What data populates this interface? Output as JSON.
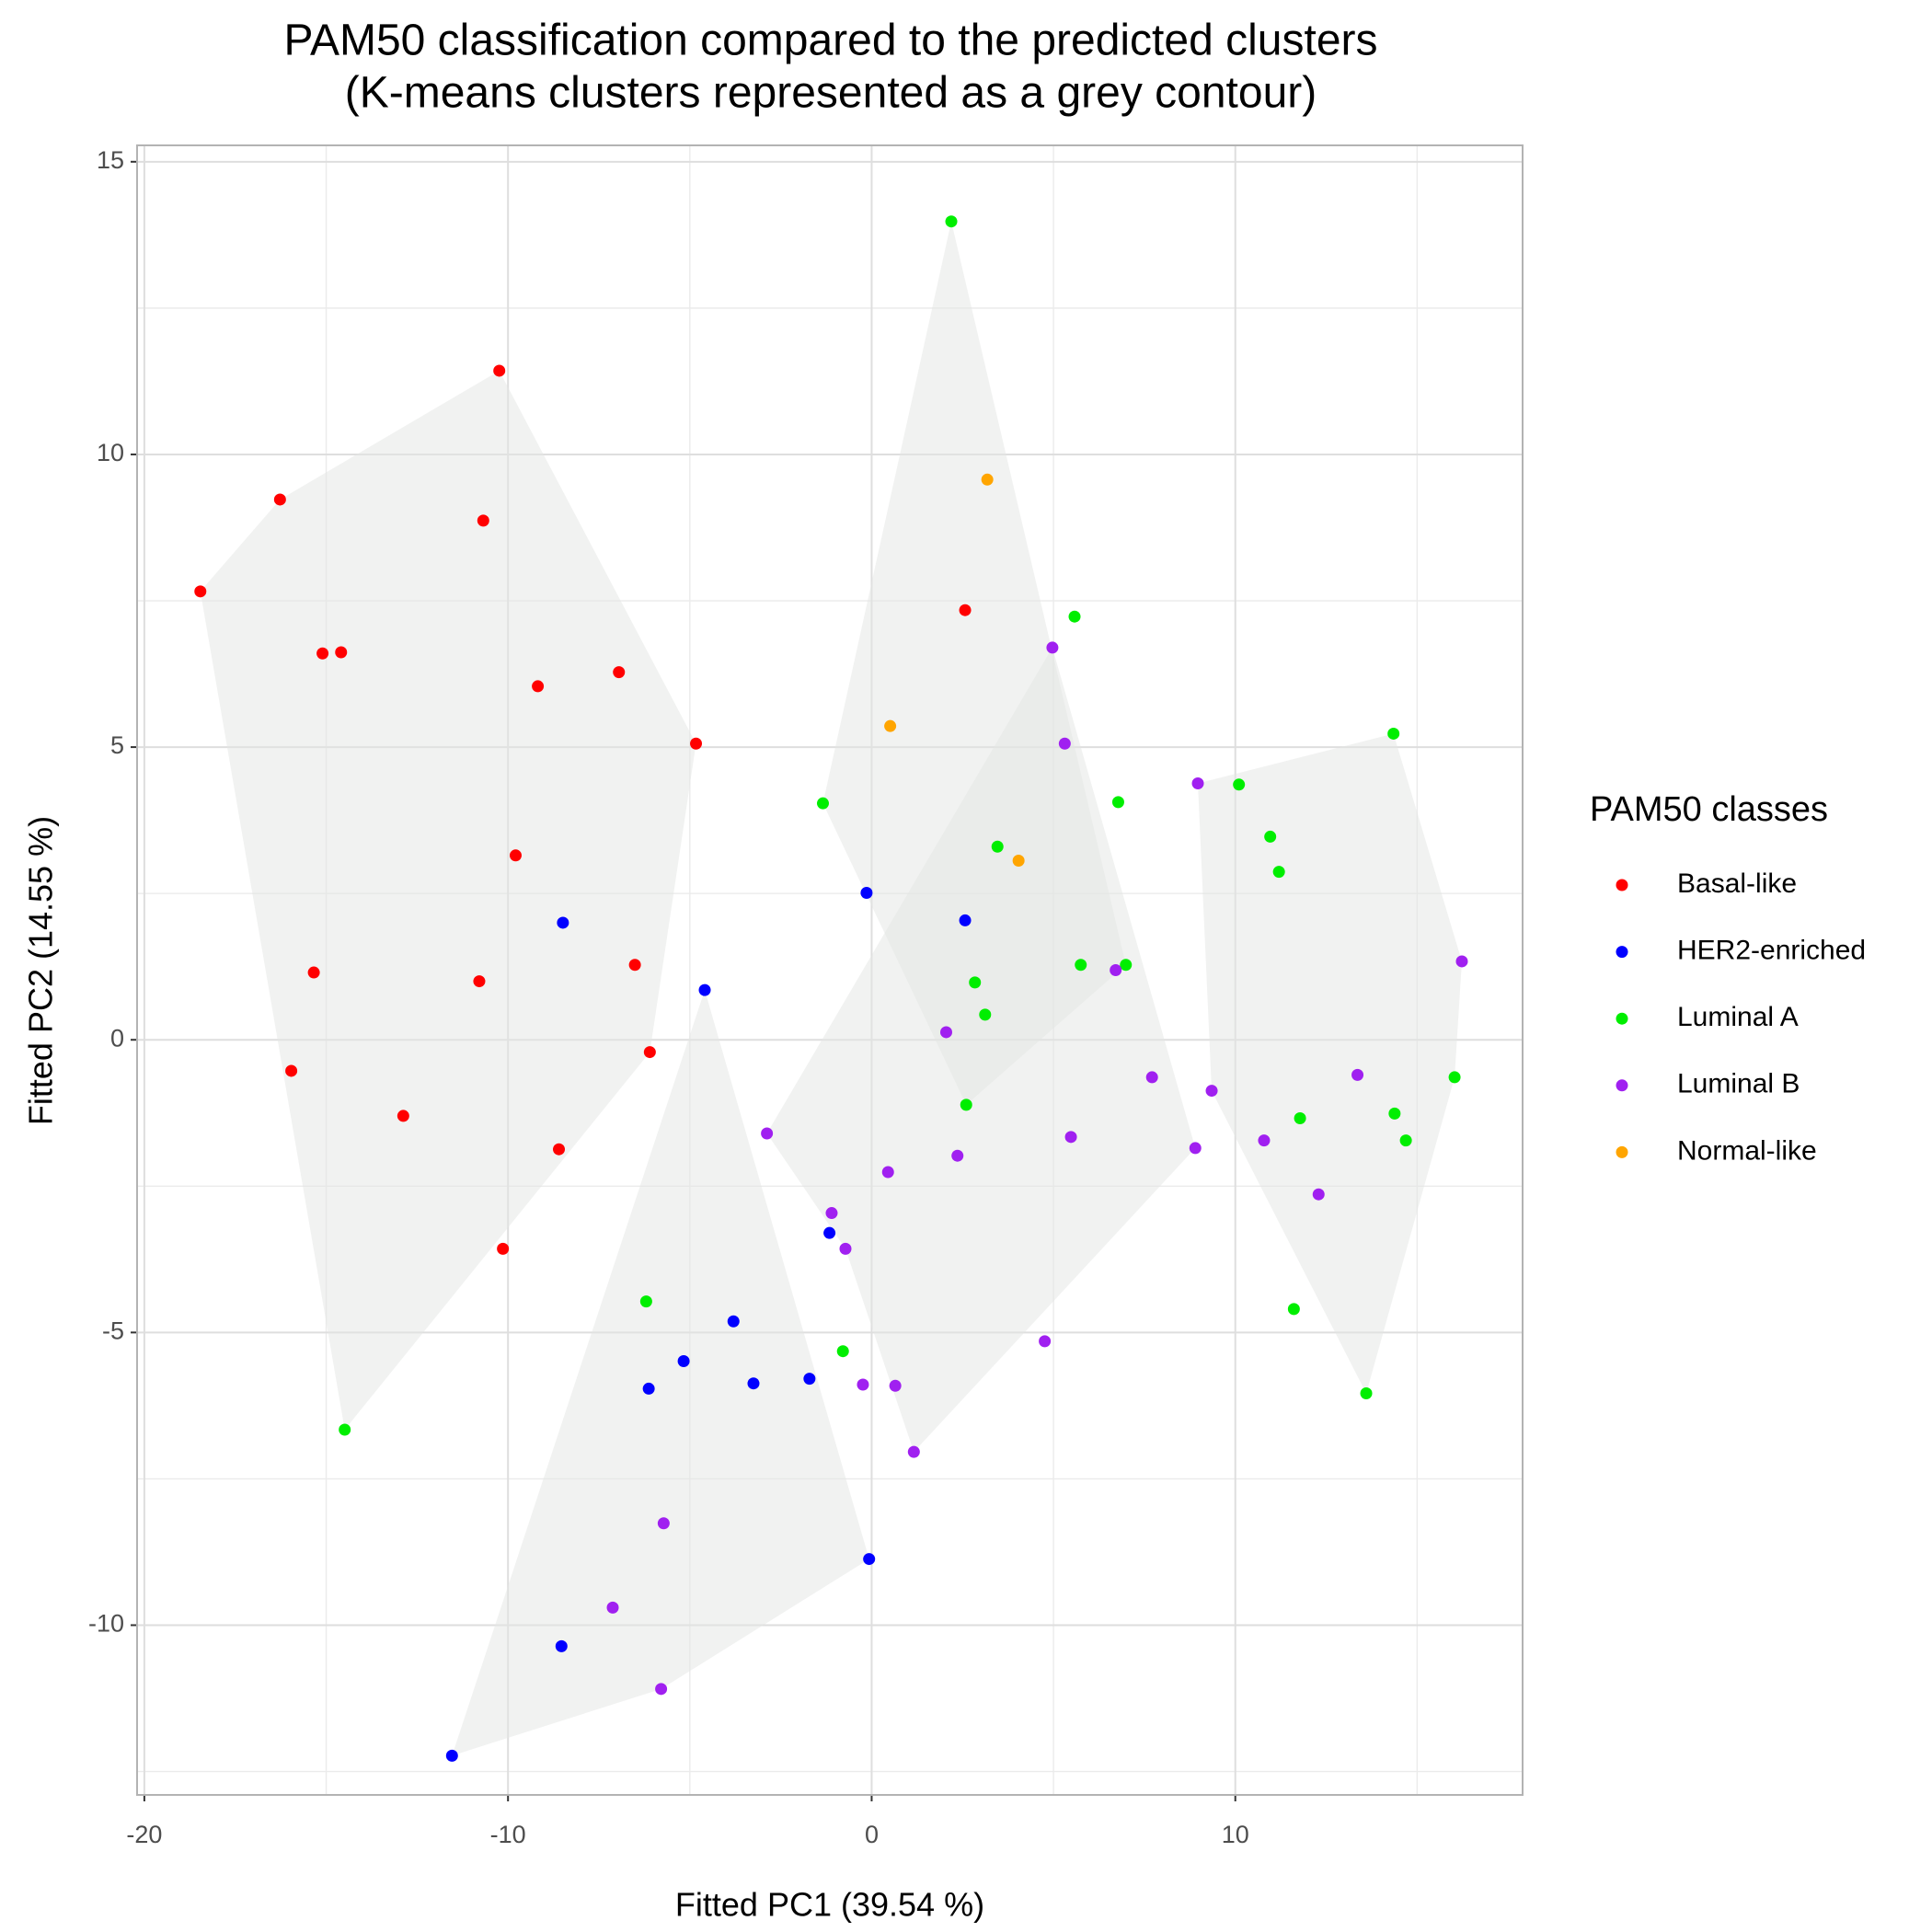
{
  "chart_data": {
    "type": "scatter",
    "title": "PAM50 classification compared to the predicted clusters",
    "subtitle": "(K-means clusters represented as a grey contour)",
    "x_label": "Fitted PC1 (39.54 %)",
    "y_label": "Fitted PC2 (14.55 %)",
    "legend_title": "PAM50 classes",
    "legend_position": "right",
    "grid": true,
    "xlim": [
      -20.2,
      17.9
    ],
    "ylim": [
      -12.9,
      15.28
    ],
    "xticks": [
      -20,
      -10,
      0,
      10
    ],
    "yticks": [
      -10,
      -5,
      0,
      5,
      10,
      15
    ],
    "contour_color": "#e3e5e3",
    "series": [
      {
        "name": "Basal-like",
        "color": "#ff0000",
        "x": [
          -18.46,
          -16.27,
          -10.24,
          -10.68,
          -15.1,
          -14.59,
          -9.18,
          -6.95,
          -4.83,
          -9.79,
          -15.34,
          -10.79,
          -6.51,
          -6.1,
          -15.96,
          -12.88,
          -8.6,
          -10.14,
          2.57
        ],
        "values": [
          7.66,
          9.23,
          11.43,
          8.87,
          6.6,
          6.62,
          6.04,
          6.28,
          5.06,
          3.15,
          1.15,
          1.0,
          1.28,
          -0.21,
          -0.53,
          -1.3,
          -1.87,
          -3.57,
          7.34
        ]
      },
      {
        "name": "HER2-enriched",
        "color": "#0000ff",
        "x": [
          -8.49,
          -4.59,
          -0.14,
          2.57,
          -1.16,
          -3.8,
          -5.17,
          -6.13,
          -3.25,
          -1.71,
          -0.07,
          -8.53,
          -11.54
        ],
        "values": [
          2.0,
          0.85,
          2.51,
          2.04,
          -3.3,
          -4.81,
          -5.49,
          -5.96,
          -5.87,
          -5.79,
          -8.87,
          -10.36,
          -12.23
        ]
      },
      {
        "name": "Luminal A",
        "color": "#00ee00",
        "x": [
          2.19,
          5.58,
          -1.34,
          6.78,
          3.46,
          2.84,
          3.12,
          5.75,
          6.99,
          2.6,
          -6.2,
          -0.79,
          -14.49,
          14.35,
          10.1,
          10.96,
          11.2,
          16.03,
          14.38,
          14.69,
          11.78,
          11.61,
          13.6
        ],
        "values": [
          13.98,
          7.23,
          4.04,
          4.06,
          3.3,
          0.98,
          0.43,
          1.28,
          1.28,
          -1.11,
          -4.47,
          -5.32,
          -6.66,
          5.23,
          4.36,
          3.47,
          2.87,
          -0.64,
          -1.26,
          -1.72,
          -1.34,
          -4.6,
          -6.04
        ]
      },
      {
        "name": "Luminal B",
        "color": "#a020f0",
        "x": [
          4.97,
          5.31,
          8.97,
          16.23,
          6.71,
          2.05,
          7.71,
          9.35,
          13.36,
          -2.88,
          0.45,
          2.36,
          5.48,
          8.9,
          10.79,
          12.29,
          -1.1,
          -0.72,
          4.76,
          -0.24,
          0.65,
          1.16,
          -5.72,
          -7.12,
          -5.79
        ],
        "values": [
          6.7,
          5.06,
          4.38,
          1.34,
          1.19,
          0.13,
          -0.64,
          -0.87,
          -0.6,
          -1.6,
          -2.26,
          -1.98,
          -1.66,
          -1.85,
          -1.72,
          -2.64,
          -2.96,
          -3.57,
          -5.15,
          -5.89,
          -5.91,
          -7.04,
          -8.26,
          -9.7,
          -11.09
        ]
      },
      {
        "name": "Normal-like",
        "color": "#ffa500",
        "x": [
          3.18,
          0.51,
          4.04
        ],
        "values": [
          9.57,
          5.36,
          3.06
        ]
      }
    ],
    "contours": [
      [
        [
          -18.46,
          7.66
        ],
        [
          -16.27,
          9.23
        ],
        [
          -10.24,
          11.43
        ],
        [
          -4.83,
          5.06
        ],
        [
          -6.1,
          -0.21
        ],
        [
          -14.49,
          -6.66
        ]
      ],
      [
        [
          -1.34,
          4.04
        ],
        [
          2.19,
          13.98
        ],
        [
          6.99,
          1.28
        ],
        [
          2.6,
          -1.11
        ]
      ],
      [
        [
          -4.59,
          0.85
        ],
        [
          -0.07,
          -8.87
        ],
        [
          -5.79,
          -11.09
        ],
        [
          -11.54,
          -12.23
        ]
      ],
      [
        [
          -2.88,
          -1.6
        ],
        [
          4.97,
          6.7
        ],
        [
          8.9,
          -1.85
        ],
        [
          1.16,
          -7.04
        ],
        [
          -0.72,
          -3.57
        ]
      ],
      [
        [
          8.97,
          4.38
        ],
        [
          14.35,
          5.23
        ],
        [
          16.23,
          1.34
        ],
        [
          16.03,
          -0.64
        ],
        [
          13.6,
          -6.04
        ],
        [
          9.35,
          -0.87
        ]
      ]
    ]
  }
}
